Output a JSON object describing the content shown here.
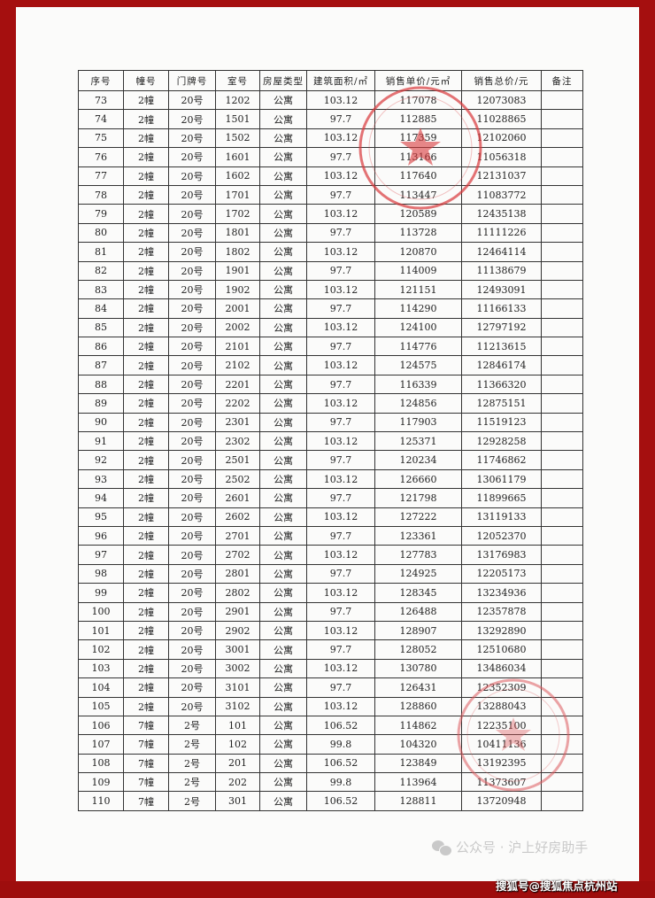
{
  "table": {
    "headers": [
      "序号",
      "幢号",
      "门牌号",
      "室号",
      "房屋类型",
      "建筑面积/㎡",
      "销售单价/元㎡",
      "销售总价/元",
      "备注"
    ],
    "rows": [
      [
        "73",
        "2幢",
        "20号",
        "1202",
        "公寓",
        "103.12",
        "117078",
        "12073083",
        ""
      ],
      [
        "74",
        "2幢",
        "20号",
        "1501",
        "公寓",
        "97.7",
        "112885",
        "11028865",
        ""
      ],
      [
        "75",
        "2幢",
        "20号",
        "1502",
        "公寓",
        "103.12",
        "117359",
        "12102060",
        ""
      ],
      [
        "76",
        "2幢",
        "20号",
        "1601",
        "公寓",
        "97.7",
        "113166",
        "11056318",
        ""
      ],
      [
        "77",
        "2幢",
        "20号",
        "1602",
        "公寓",
        "103.12",
        "117640",
        "12131037",
        ""
      ],
      [
        "78",
        "2幢",
        "20号",
        "1701",
        "公寓",
        "97.7",
        "113447",
        "11083772",
        ""
      ],
      [
        "79",
        "2幢",
        "20号",
        "1702",
        "公寓",
        "103.12",
        "120589",
        "12435138",
        ""
      ],
      [
        "80",
        "2幢",
        "20号",
        "1801",
        "公寓",
        "97.7",
        "113728",
        "11111226",
        ""
      ],
      [
        "81",
        "2幢",
        "20号",
        "1802",
        "公寓",
        "103.12",
        "120870",
        "12464114",
        ""
      ],
      [
        "82",
        "2幢",
        "20号",
        "1901",
        "公寓",
        "97.7",
        "114009",
        "11138679",
        ""
      ],
      [
        "83",
        "2幢",
        "20号",
        "1902",
        "公寓",
        "103.12",
        "121151",
        "12493091",
        ""
      ],
      [
        "84",
        "2幢",
        "20号",
        "2001",
        "公寓",
        "97.7",
        "114290",
        "11166133",
        ""
      ],
      [
        "85",
        "2幢",
        "20号",
        "2002",
        "公寓",
        "103.12",
        "124100",
        "12797192",
        ""
      ],
      [
        "86",
        "2幢",
        "20号",
        "2101",
        "公寓",
        "97.7",
        "114776",
        "11213615",
        ""
      ],
      [
        "87",
        "2幢",
        "20号",
        "2102",
        "公寓",
        "103.12",
        "124575",
        "12846174",
        ""
      ],
      [
        "88",
        "2幢",
        "20号",
        "2201",
        "公寓",
        "97.7",
        "116339",
        "11366320",
        ""
      ],
      [
        "89",
        "2幢",
        "20号",
        "2202",
        "公寓",
        "103.12",
        "124856",
        "12875151",
        ""
      ],
      [
        "90",
        "2幢",
        "20号",
        "2301",
        "公寓",
        "97.7",
        "117903",
        "11519123",
        ""
      ],
      [
        "91",
        "2幢",
        "20号",
        "2302",
        "公寓",
        "103.12",
        "125371",
        "12928258",
        ""
      ],
      [
        "92",
        "2幢",
        "20号",
        "2501",
        "公寓",
        "97.7",
        "120234",
        "11746862",
        ""
      ],
      [
        "93",
        "2幢",
        "20号",
        "2502",
        "公寓",
        "103.12",
        "126660",
        "13061179",
        ""
      ],
      [
        "94",
        "2幢",
        "20号",
        "2601",
        "公寓",
        "97.7",
        "121798",
        "11899665",
        ""
      ],
      [
        "95",
        "2幢",
        "20号",
        "2602",
        "公寓",
        "103.12",
        "127222",
        "13119133",
        ""
      ],
      [
        "96",
        "2幢",
        "20号",
        "2701",
        "公寓",
        "97.7",
        "123361",
        "12052370",
        ""
      ],
      [
        "97",
        "2幢",
        "20号",
        "2702",
        "公寓",
        "103.12",
        "127783",
        "13176983",
        ""
      ],
      [
        "98",
        "2幢",
        "20号",
        "2801",
        "公寓",
        "97.7",
        "124925",
        "12205173",
        ""
      ],
      [
        "99",
        "2幢",
        "20号",
        "2802",
        "公寓",
        "103.12",
        "128345",
        "13234936",
        ""
      ],
      [
        "100",
        "2幢",
        "20号",
        "2901",
        "公寓",
        "97.7",
        "126488",
        "12357878",
        ""
      ],
      [
        "101",
        "2幢",
        "20号",
        "2902",
        "公寓",
        "103.12",
        "128907",
        "13292890",
        ""
      ],
      [
        "102",
        "2幢",
        "20号",
        "3001",
        "公寓",
        "97.7",
        "128052",
        "12510680",
        ""
      ],
      [
        "103",
        "2幢",
        "20号",
        "3002",
        "公寓",
        "103.12",
        "130780",
        "13486034",
        ""
      ],
      [
        "104",
        "2幢",
        "20号",
        "3101",
        "公寓",
        "97.7",
        "126431",
        "12352309",
        ""
      ],
      [
        "105",
        "2幢",
        "20号",
        "3102",
        "公寓",
        "103.12",
        "128860",
        "13288043",
        ""
      ],
      [
        "106",
        "7幢",
        "2号",
        "101",
        "公寓",
        "106.52",
        "114862",
        "12235100",
        ""
      ],
      [
        "107",
        "7幢",
        "2号",
        "102",
        "公寓",
        "99.8",
        "104320",
        "10411136",
        ""
      ],
      [
        "108",
        "7幢",
        "2号",
        "201",
        "公寓",
        "106.52",
        "123849",
        "13192395",
        ""
      ],
      [
        "109",
        "7幢",
        "2号",
        "202",
        "公寓",
        "99.8",
        "113964",
        "11373607",
        ""
      ],
      [
        "110",
        "7幢",
        "2号",
        "301",
        "公寓",
        "106.52",
        "128811",
        "13720948",
        ""
      ]
    ]
  },
  "watermark": {
    "text": "公众号 · 沪上好房助手",
    "icon": "wechat-icon"
  },
  "source_credit": "搜狐号@搜狐焦点杭州站",
  "colors": {
    "frame": "#a50f0f",
    "stamp": "#d9383a"
  }
}
